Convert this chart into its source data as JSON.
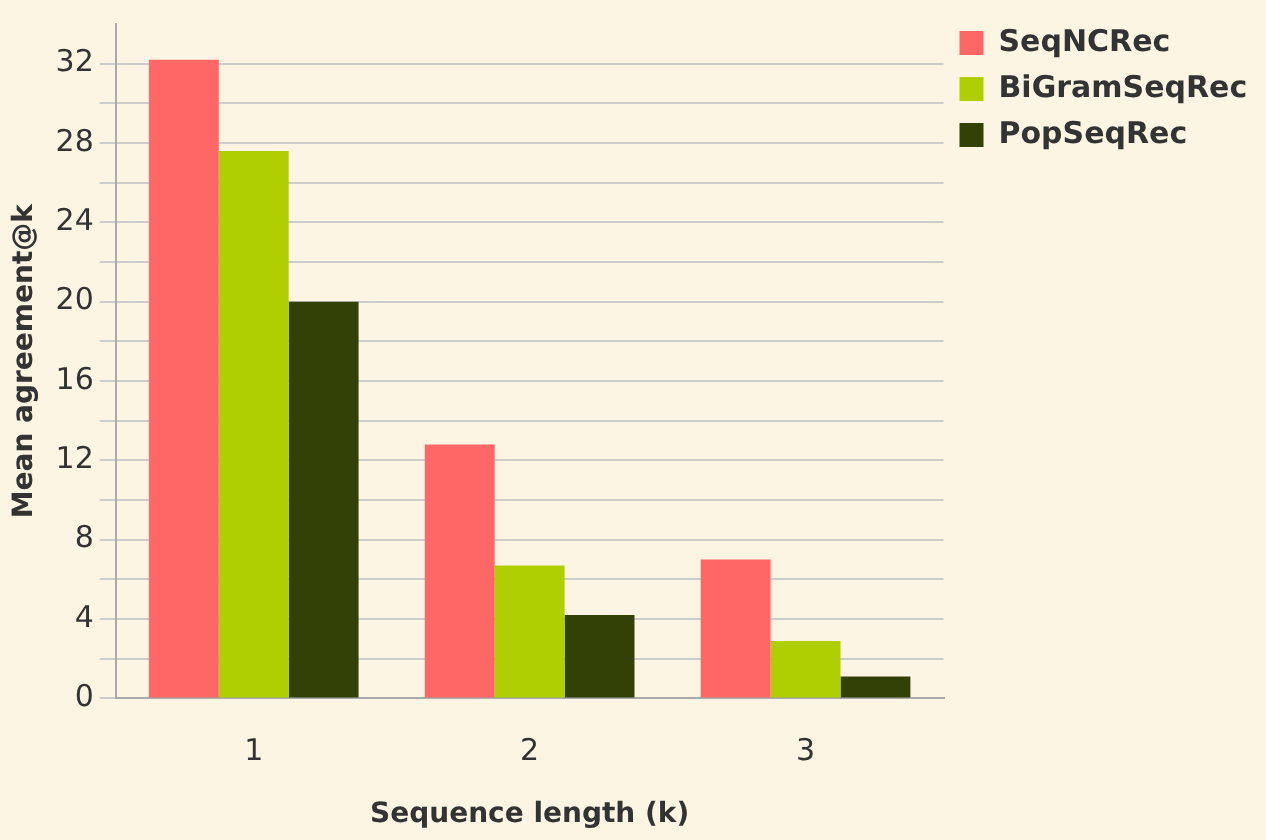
{
  "chart_data": {
    "type": "bar",
    "xlabel": "Sequence length (k)",
    "ylabel": "Mean agreement@k",
    "categories": [
      "1",
      "2",
      "3"
    ],
    "series": [
      {
        "name": "SeqNCRec",
        "color": "#ff6666",
        "values": [
          32.2,
          12.8,
          7.0
        ]
      },
      {
        "name": "BiGramSeqRec",
        "color": "#afcf00",
        "values": [
          27.6,
          6.7,
          2.9
        ]
      },
      {
        "name": "PopSeqRec",
        "color": "#334107",
        "values": [
          20.0,
          4.2,
          1.1
        ]
      }
    ],
    "ylim": [
      0,
      34
    ],
    "yticks": [
      0,
      {
        "value": 2,
        "label": null
      },
      4,
      {
        "value": 6,
        "label": null
      },
      8,
      {
        "value": 10,
        "label": null
      },
      12,
      {
        "value": 14,
        "label": null
      },
      16,
      {
        "value": 18,
        "label": null
      },
      20,
      {
        "value": 22,
        "label": null
      },
      24,
      {
        "value": 26,
        "label": null
      },
      28,
      {
        "value": 30,
        "label": null
      },
      32
    ],
    "grid": "y",
    "legend": "right"
  }
}
